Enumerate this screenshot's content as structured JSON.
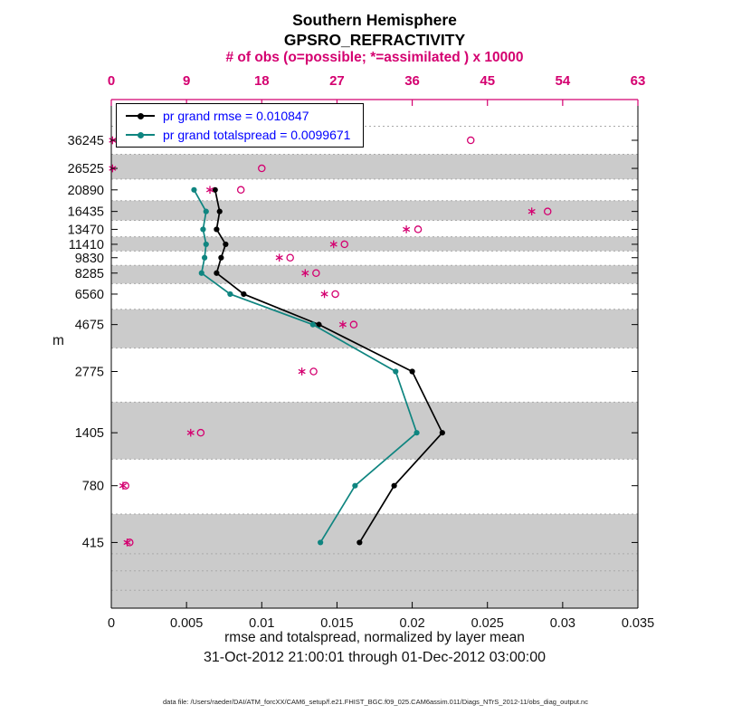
{
  "chart_data": {
    "type": "line",
    "title": "Southern Hemisphere",
    "subtitle": "GPSRO_REFRACTIVITY",
    "top_axis": {
      "label": "# of obs (o=possible; *=assimilated ) x 10000",
      "ticks": [
        0,
        9,
        18,
        27,
        36,
        45,
        54,
        63
      ],
      "range": [
        0,
        63
      ],
      "color": "#d40070"
    },
    "bottom_axis": {
      "label": "rmse and totalspread, normalized by layer mean",
      "sub_label": "31-Oct-2012 21:00:01 through 01-Dec-2012 03:00:00",
      "ticks": [
        0,
        0.005,
        0.01,
        0.015,
        0.02,
        0.025,
        0.03,
        0.035
      ],
      "range": [
        0,
        0.035
      ]
    },
    "y_axis": {
      "label": "m",
      "scale": "log",
      "range": [
        200,
        57000
      ],
      "levels": [
        36245,
        26525,
        20890,
        16435,
        13470,
        11410,
        9830,
        8285,
        6560,
        4675,
        2775,
        1405,
        780,
        415
      ]
    },
    "series": [
      {
        "name": "pr grand rmse",
        "legend": "pr grand rmse = 0.010847",
        "color": "#000000",
        "values": [
          null,
          null,
          0.0069,
          0.0072,
          0.007,
          0.0076,
          0.0073,
          0.007,
          0.0088,
          0.0138,
          0.02,
          0.022,
          0.0188,
          0.0165
        ]
      },
      {
        "name": "pr grand totalspread",
        "legend": "pr grand totalspread = 0.0099671",
        "color": "#0f8580",
        "values": [
          null,
          null,
          0.0055,
          0.0063,
          0.0061,
          0.0063,
          0.0062,
          0.006,
          0.0079,
          0.0134,
          0.0189,
          0.0203,
          0.0162,
          0.0139
        ]
      }
    ],
    "obs_counts": {
      "color": "#d40070",
      "possible": [
        43,
        18,
        15.5,
        52.2,
        36.7,
        27.9,
        21.4,
        24.5,
        26.8,
        29.0,
        24.2,
        10.7,
        1.7,
        2.2
      ],
      "assimilated": [
        0.15,
        0.15,
        11.8,
        50.3,
        35.3,
        26.6,
        20.1,
        23.2,
        25.5,
        27.7,
        22.8,
        9.5,
        1.4,
        1.9
      ]
    },
    "shading": {
      "band_color": "#cbcbcb",
      "gridline_color": "#a9a9a9",
      "extra_boundaries": [
        42371,
        366,
        303,
        244
      ]
    },
    "legend_text_color": "#0000ff",
    "footer": "data file: /Users/raeder/DAI/ATM_forcXX/CAM6_setup/f.e21.FHIST_BGC.f09_025.CAM6assim.011/Diags_NTrS_2012-11/obs_diag_output.nc"
  }
}
